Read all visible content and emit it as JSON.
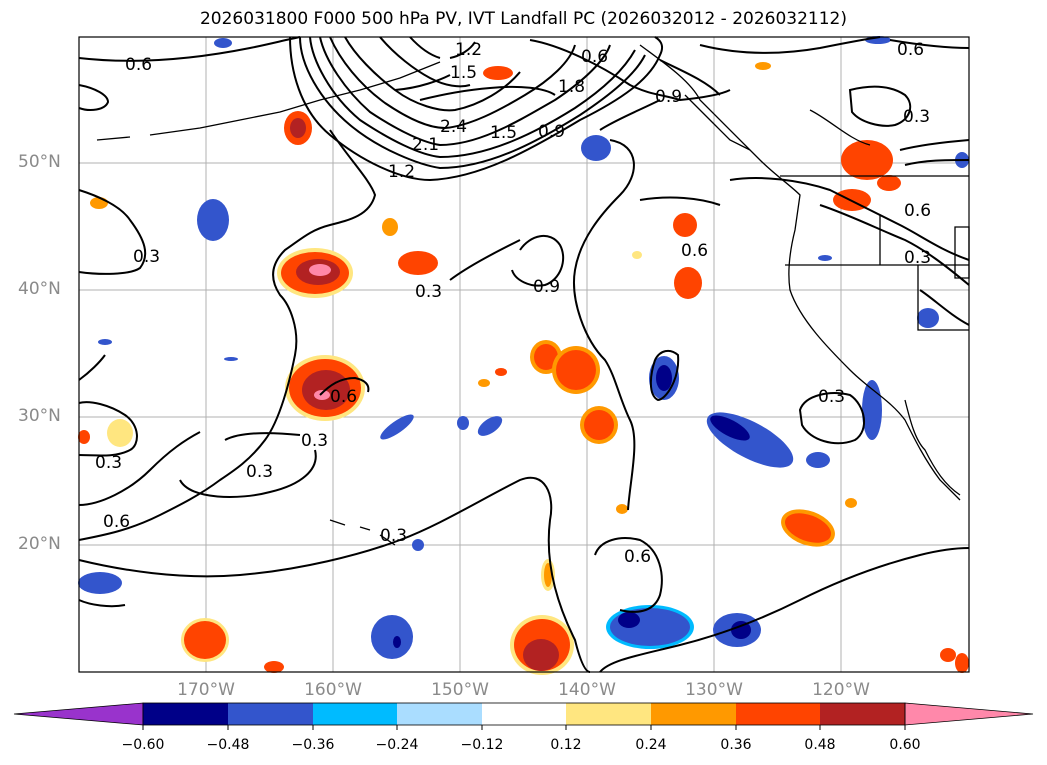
{
  "title": "2026031800 F000 500 hPa PV, IVT Landfall PC (2026032012 - 2026032112)",
  "lat_ticks": [
    "50°N",
    "40°N",
    "30°N",
    "20°N"
  ],
  "lon_ticks": [
    "170°W",
    "160°W",
    "150°W",
    "140°W",
    "130°W",
    "120°W"
  ],
  "colorbar": {
    "labels": [
      "−0.60",
      "−0.48",
      "−0.36",
      "−0.24",
      "−0.12",
      "0.12",
      "0.24",
      "0.36",
      "0.48",
      "0.60"
    ],
    "colors": [
      "#9933cc",
      "#000088",
      "#3355cc",
      "#00bbff",
      "#aaddff",
      "#ffffff",
      "#ffe680",
      "#ff9900",
      "#ff4400",
      "#b22222",
      "#ff88aa"
    ]
  },
  "contour_labels": [
    "0.6",
    "1.2",
    "1.5",
    "1.8",
    "2.1",
    "2.4",
    "1.2",
    "1.5",
    "0.9",
    "0.9",
    "0.6",
    "0.3",
    "0.3",
    "0.3",
    "0.9",
    "0.6",
    "0.6",
    "0.3",
    "0.6",
    "0.3",
    "0.3",
    "0.3",
    "0.6",
    "0.3",
    "0.6",
    "0.3",
    "0.6"
  ]
}
